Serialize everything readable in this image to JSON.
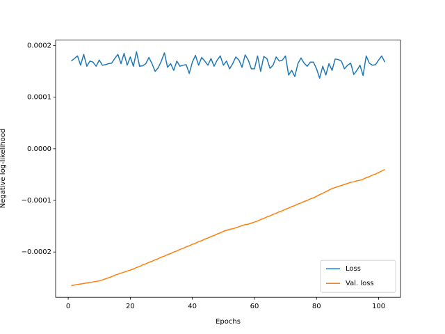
{
  "chart_data": {
    "type": "line",
    "x_label": "Epochs",
    "y_label": "Negative log-likelihood",
    "x": [
      1,
      2,
      3,
      4,
      5,
      6,
      7,
      8,
      9,
      10,
      11,
      12,
      13,
      14,
      15,
      16,
      17,
      18,
      19,
      20,
      21,
      22,
      23,
      24,
      25,
      26,
      27,
      28,
      29,
      30,
      31,
      32,
      33,
      34,
      35,
      36,
      37,
      38,
      39,
      40,
      41,
      42,
      43,
      44,
      45,
      46,
      47,
      48,
      49,
      50,
      51,
      52,
      53,
      54,
      55,
      56,
      57,
      58,
      59,
      60,
      61,
      62,
      63,
      64,
      65,
      66,
      67,
      68,
      69,
      70,
      71,
      72,
      73,
      74,
      75,
      76,
      77,
      78,
      79,
      80,
      81,
      82,
      83,
      84,
      85,
      86,
      87,
      88,
      89,
      90,
      91,
      92,
      93,
      94,
      95,
      96,
      97,
      98,
      99,
      100,
      101,
      102
    ],
    "series": [
      {
        "name": "Loss",
        "color": "#1f77b4",
        "values": [
          0.00017,
          0.000175,
          0.00018,
          0.000162,
          0.000183,
          0.00016,
          0.00017,
          0.000168,
          0.00016,
          0.000172,
          0.000162,
          0.000163,
          0.000165,
          0.000166,
          0.000175,
          0.000183,
          0.000165,
          0.000185,
          0.000162,
          0.000178,
          0.00016,
          0.000188,
          0.00016,
          0.000161,
          0.000165,
          0.000177,
          0.000165,
          0.00015,
          0.000157,
          0.00017,
          0.000186,
          0.000158,
          0.000165,
          0.000152,
          0.00017,
          0.00016,
          0.000162,
          0.000163,
          0.000146,
          0.000168,
          0.000181,
          0.000162,
          0.000177,
          0.00017,
          0.000162,
          0.000175,
          0.00016,
          0.000172,
          0.00018,
          0.000162,
          0.00017,
          0.000155,
          0.000165,
          0.000178,
          0.000172,
          0.000158,
          0.000182,
          0.000172,
          0.000155,
          0.000155,
          0.00018,
          0.00015,
          0.000179,
          0.000175,
          0.000156,
          0.000162,
          0.000178,
          0.00017,
          0.000172,
          0.00018,
          0.000143,
          0.000152,
          0.00014,
          0.000165,
          0.000176,
          0.000166,
          0.00016,
          0.000168,
          0.000168,
          0.000155,
          0.000137,
          0.00016,
          0.000143,
          0.000165,
          0.000152,
          0.000174,
          0.000173,
          0.00017,
          0.000155,
          0.000162,
          0.000166,
          0.000144,
          0.000152,
          0.000162,
          0.000142,
          0.00018,
          0.000166,
          0.000162,
          0.000163,
          0.000172,
          0.00018,
          0.000168
        ]
      },
      {
        "name": "Val. loss",
        "color": "#ff7f0e",
        "values": [
          -0.000265,
          -0.000264,
          -0.000263,
          -0.000262,
          -0.000261,
          -0.00026,
          -0.000259,
          -0.000258,
          -0.000257,
          -0.000256,
          -0.000254,
          -0.000252,
          -0.00025,
          -0.000248,
          -0.000245,
          -0.000243,
          -0.000241,
          -0.000239,
          -0.000237,
          -0.000235,
          -0.000233,
          -0.00023,
          -0.000228,
          -0.000225,
          -0.000223,
          -0.00022,
          -0.000218,
          -0.000215,
          -0.000213,
          -0.00021,
          -0.000208,
          -0.000205,
          -0.000203,
          -0.0002,
          -0.000198,
          -0.000195,
          -0.000193,
          -0.00019,
          -0.000188,
          -0.000185,
          -0.000183,
          -0.00018,
          -0.000178,
          -0.000175,
          -0.000173,
          -0.00017,
          -0.000168,
          -0.000165,
          -0.000163,
          -0.00016,
          -0.000158,
          -0.000156,
          -0.000155,
          -0.000153,
          -0.000151,
          -0.000149,
          -0.000147,
          -0.000146,
          -0.000144,
          -0.000142,
          -0.00014,
          -0.000137,
          -0.000135,
          -0.000132,
          -0.00013,
          -0.000127,
          -0.000125,
          -0.000122,
          -0.00012,
          -0.000117,
          -0.000115,
          -0.000112,
          -0.00011,
          -0.000107,
          -0.000105,
          -0.000102,
          -0.0001,
          -9.7e-05,
          -9.5e-05,
          -9.2e-05,
          -8.9e-05,
          -8.6e-05,
          -8.3e-05,
          -8e-05,
          -7.7e-05,
          -7.5e-05,
          -7.3e-05,
          -7.1e-05,
          -6.9e-05,
          -6.7e-05,
          -6.5e-05,
          -6.4e-05,
          -6.2e-05,
          -6.1e-05,
          -5.9e-05,
          -5.6e-05,
          -5.4e-05,
          -5.1e-05,
          -4.9e-05,
          -4.6e-05,
          -4.3e-05,
          -4e-05
        ]
      }
    ],
    "xlim": [
      -4.05,
      107.05
    ],
    "ylim": [
      -0.0002877,
      0.0002107
    ],
    "xticks": [
      0,
      20,
      40,
      60,
      80,
      100
    ],
    "yticks": [
      {
        "value": -0.0002,
        "label": "−0.0002"
      },
      {
        "value": -0.0001,
        "label": "−0.0001"
      },
      {
        "value": 0,
        "label": "0.0000"
      },
      {
        "value": 0.0001,
        "label": "0.0001"
      },
      {
        "value": 0.0002,
        "label": "0.0002"
      }
    ],
    "grid": false,
    "legend": "lower right"
  }
}
